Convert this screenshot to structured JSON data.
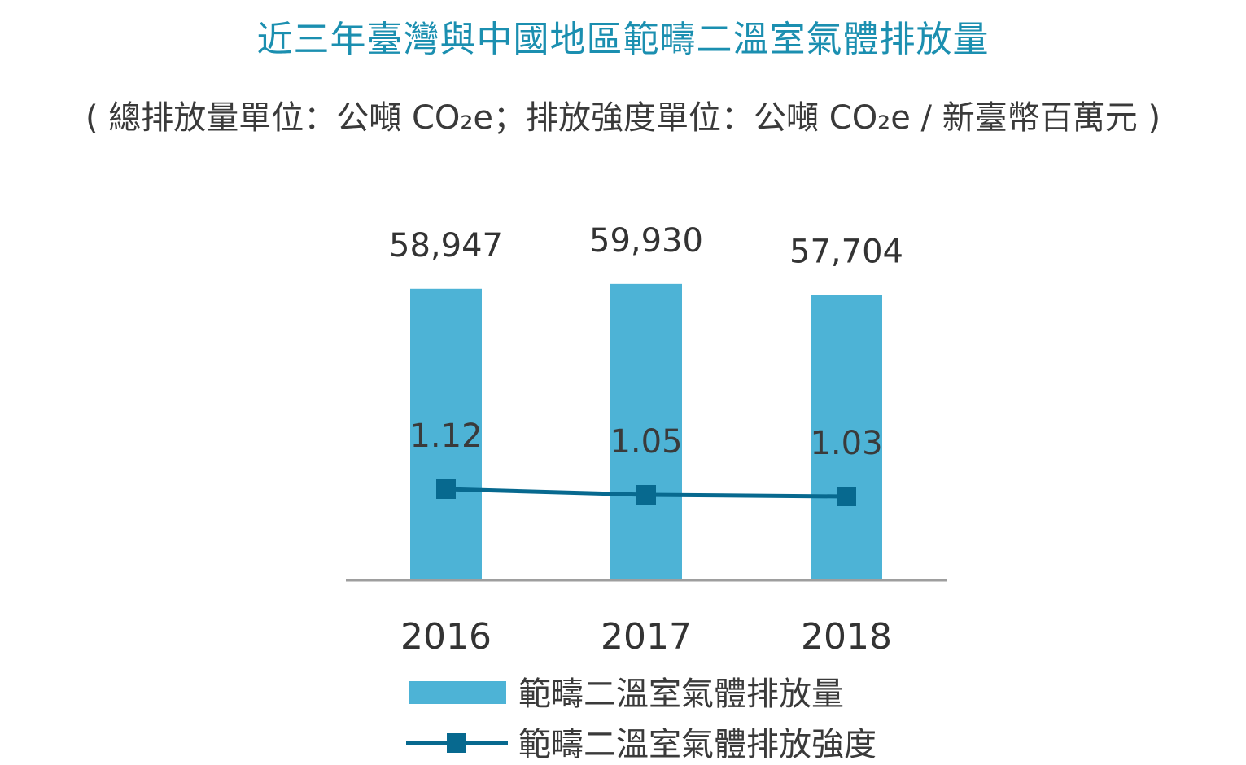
{
  "chart_data": {
    "type": "bar",
    "title": "近三年臺灣與中國地區範疇二溫室氣體排放量",
    "subtitle": "( 總排放量單位：公噸 CO₂e；排放強度單位：公噸 CO₂e / 新臺幣百萬元 )",
    "categories": [
      "2016",
      "2017",
      "2018"
    ],
    "series": [
      {
        "name": "範疇二溫室氣體排放量",
        "type": "bar",
        "values": [
          58947,
          59930,
          57704
        ],
        "labels": [
          "58,947",
          "59,930",
          "57,704"
        ],
        "color": "#4db3d6"
      },
      {
        "name": "範疇二溫室氣體排放強度",
        "type": "line",
        "values": [
          1.12,
          1.05,
          1.03
        ],
        "labels": [
          "1.12",
          "1.05",
          "1.03"
        ],
        "color": "#07698f"
      }
    ],
    "bar_ylim": [
      0,
      70000
    ],
    "line_ylim": [
      0,
      1.12
    ],
    "legend_position": "bottom-left",
    "grid": false
  }
}
